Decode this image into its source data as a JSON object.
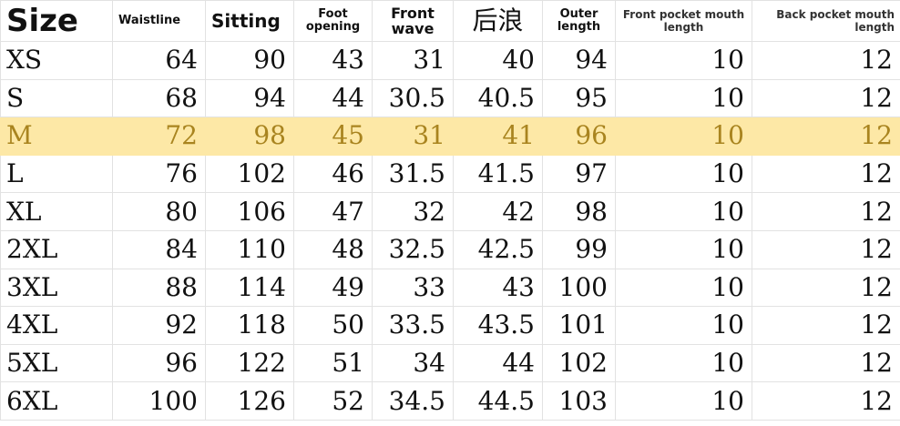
{
  "table": {
    "header": [
      "Size",
      "Waistline",
      "Sitting",
      "Foot opening",
      "Front wave",
      "后浪",
      "Outer length",
      "Front pocket mouth length",
      "Back pocket mouth length"
    ],
    "rows": [
      [
        "XS",
        64,
        90,
        43,
        31,
        40,
        94,
        10,
        12
      ],
      [
        "S",
        68,
        94,
        44,
        30.5,
        40.5,
        95,
        10,
        12
      ],
      [
        "M",
        72,
        98,
        45,
        31,
        41,
        96,
        10,
        12
      ],
      [
        "L",
        76,
        102,
        46,
        31.5,
        41.5,
        97,
        10,
        12
      ],
      [
        "XL",
        80,
        106,
        47,
        32,
        42,
        98,
        10,
        12
      ],
      [
        "2XL",
        84,
        110,
        48,
        32.5,
        42.5,
        99,
        10,
        12
      ],
      [
        "3XL",
        88,
        114,
        49,
        33,
        43,
        100,
        10,
        12
      ],
      [
        "4XL",
        92,
        118,
        50,
        33.5,
        43.5,
        101,
        10,
        12
      ],
      [
        "5XL",
        96,
        122,
        51,
        34,
        44,
        102,
        10,
        12
      ],
      [
        "6XL",
        100,
        126,
        52,
        34.5,
        44.5,
        103,
        10,
        12
      ]
    ]
  }
}
